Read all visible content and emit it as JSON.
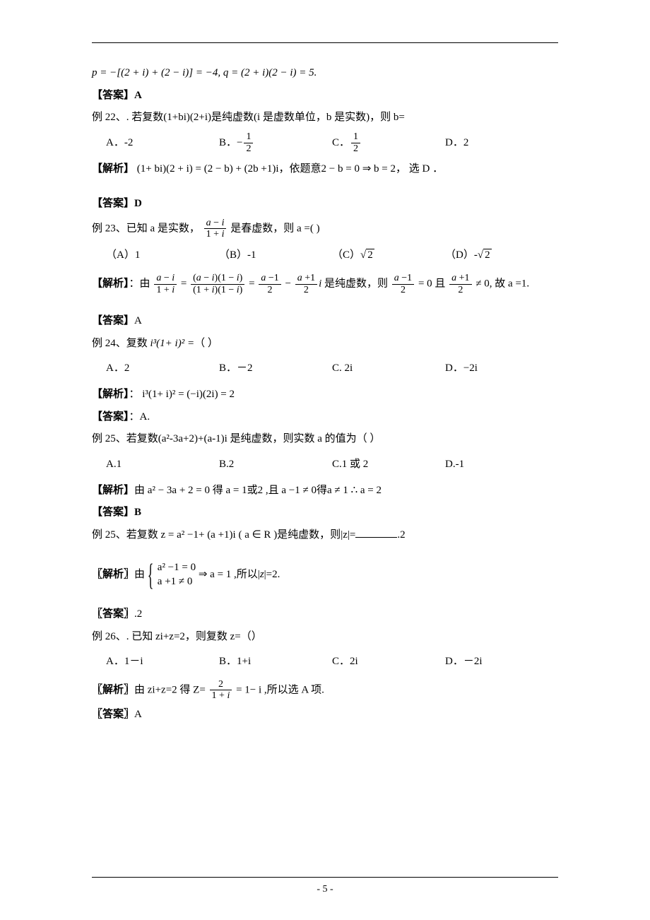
{
  "page_number": "- 5 -",
  "top_eq": "p = −[(2 + i) + (2 − i)] = −4, q = (2 + i)(2 − i) = 5.",
  "ans_bracket_open": "【",
  "ans_bracket_close": "】",
  "ans_label": "答案",
  "jiexi_label": "解析",
  "jiexi_label_alt": "〖解析〗",
  "ans_label_alt": "〖答案〗",
  "q22": {
    "ans_prev": "A",
    "stem": "例 22、. 若复数(1+bi)(2+i)是纯虚数(i 是虚数单位，b 是实数)，则 b=",
    "A": "A．-2",
    "B_prefix": "B．",
    "C_prefix": "C．",
    "D": "D．2",
    "jiexi_pre": "(1+ bi)(2 + i) = (2 − b) + (2b +1)i",
    "jiexi_mid": "，依题意",
    "jiexi_eq": "2 − b = 0 ⇒ b = 2",
    "jiexi_post": "， 选 D ．",
    "ans": "D"
  },
  "q23": {
    "stem_pre": "例 23、已知 a 是实数，",
    "stem_mid": "是春虚数，则 a =(         )",
    "A": "（A）1",
    "B": "（B）-1",
    "C_pre": "（C）",
    "D_pre": "（D）-",
    "jiexi_pre": "：由",
    "jiexi_mid": "是纯虚数，则",
    "jiexi_and": "= 0 且",
    "jiexi_post": "≠ 0, 故 a =1.",
    "ans": "A"
  },
  "q24": {
    "stem_pre": "例 24、复数  ",
    "stem_expr": "i³(1+ i)² =",
    "stem_post": "（      ）",
    "A": "A．2",
    "B": "B．－2",
    "C": "C.      2i",
    "D": "D．−2i",
    "jiexi": "：  i³(1+ i)² = (−i)(2i) = 2",
    "ans": "：A."
  },
  "q25a": {
    "stem": "例 25、若复数(a²-3a+2)+(a-1)i 是纯虚数，则实数 a 的值为（        ）",
    "A": "A.1",
    "B": "B.2",
    "C": "C.1 或 2",
    "D": "D.-1",
    "jiexi": "由 a² − 3a + 2 = 0 得 a = 1或2 ,且 a −1 ≠ 0得a ≠ 1 ∴ a = 2",
    "ans": "B"
  },
  "q25b": {
    "stem_pre": "例 25、若复数 z = a² −1+ (a +1)i ( a ∈ R )是纯虚数，则",
    "stem_z": "|z|",
    "stem_eq": "=",
    "stem_ans": ".2",
    "jiexi_pre": "由",
    "sys_top": "a² −1 = 0",
    "sys_bot": "a +1 ≠ 0",
    "jiexi_mid": "⇒ a = 1 ,所以",
    "jiexi_post": "=2.",
    "ans": ".2"
  },
  "q26": {
    "stem": "例 26、. 已知 zi+z=2，则复数 z=（）",
    "A": "A．1－i",
    "B": "B．1+i",
    "C": "C．2i",
    "D": "D．－2i",
    "jiexi_pre": "由 zi+z=2 得 Z=",
    "jiexi_post": "= 1− i ,所以选 A 项.",
    "ans": "A"
  }
}
